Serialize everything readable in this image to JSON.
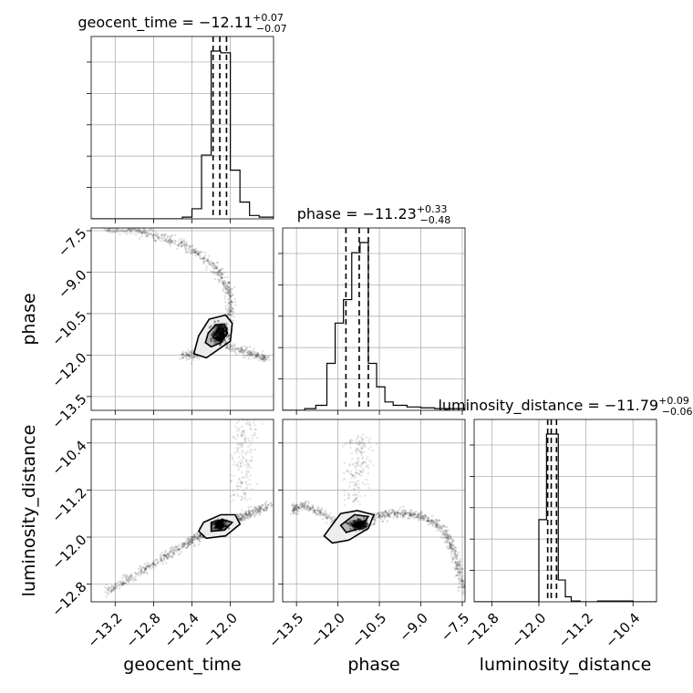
{
  "chart_data": {
    "type": "corner",
    "grid": true,
    "parameters": [
      {
        "name": "geocent_time",
        "median": "−12.11",
        "plus": "+0.07",
        "minus": "−0.07",
        "range": [
          -13.45,
          -11.55
        ],
        "ticks": [
          -13.2,
          -12.8,
          -12.4,
          -12.0
        ],
        "tick_labels": [
          "−13.2",
          "−12.8",
          "−12.4",
          "−12.0"
        ],
        "quantiles": [
          -12.18,
          -12.11,
          -12.04
        ]
      },
      {
        "name": "phase",
        "median": "−11.23",
        "plus": "+0.33",
        "minus": "−0.48",
        "range": [
          -14.0,
          -7.4
        ],
        "ticks": [
          -13.5,
          -12.0,
          -10.5,
          -9.0,
          -7.5
        ],
        "tick_labels": [
          "−13.5",
          "−12.0",
          "−10.5",
          "−9.0",
          "−7.5"
        ],
        "quantiles": [
          -11.71,
          -11.23,
          -10.9
        ]
      },
      {
        "name": "luminosity_distance",
        "median": "−11.79",
        "plus": "+0.09",
        "minus": "−0.06",
        "range": [
          -13.1,
          -10.0
        ],
        "ticks": [
          -12.8,
          -12.0,
          -11.2,
          -10.4
        ],
        "tick_labels": [
          "−12.8",
          "−12.0",
          "−11.2",
          "−10.4"
        ],
        "quantiles": [
          -11.85,
          -11.79,
          -11.7
        ]
      }
    ],
    "histograms": [
      {
        "param": "geocent_time",
        "edges": [
          -12.6,
          -12.5,
          -12.4,
          -12.3,
          -12.2,
          -12.1,
          -12.0,
          -11.9,
          -11.8,
          -11.7,
          -11.55
        ],
        "counts": [
          0,
          0.01,
          0.06,
          0.38,
          1.0,
          0.99,
          0.29,
          0.1,
          0.02,
          0.01
        ]
      },
      {
        "param": "phase",
        "edges": [
          -13.2,
          -12.8,
          -12.4,
          -12.1,
          -11.8,
          -11.5,
          -11.2,
          -10.9,
          -10.6,
          -10.3,
          -10.0,
          -9.5,
          -9.0,
          -8.5,
          -7.4
        ],
        "counts": [
          0.01,
          0.03,
          0.28,
          0.52,
          0.66,
          0.94,
          1.0,
          0.28,
          0.14,
          0.05,
          0.03,
          0.02,
          0.015,
          0.01
        ]
      },
      {
        "param": "luminosity_distance",
        "edges": [
          -12.2,
          -12.0,
          -11.87,
          -11.67,
          -11.55,
          -11.45,
          -11.3,
          -11.0,
          -10.4,
          -10.0
        ],
        "counts": [
          0,
          0.49,
          1.0,
          0.13,
          0.03,
          0.005,
          0,
          0.005,
          0
        ]
      }
    ],
    "pairs": [
      {
        "x": "geocent_time",
        "y": "phase",
        "trend_points": [
          [
            -13.3,
            -7.4
          ],
          [
            -13.1,
            -7.45
          ],
          [
            -12.9,
            -7.55
          ],
          [
            -12.7,
            -7.75
          ],
          [
            -12.5,
            -8.0
          ],
          [
            -12.3,
            -8.4
          ],
          [
            -12.15,
            -8.85
          ],
          [
            -12.05,
            -9.4
          ],
          [
            -12.0,
            -9.9
          ],
          [
            -12.0,
            -10.5
          ],
          [
            -12.03,
            -11.1
          ],
          [
            -12.1,
            -11.5
          ],
          [
            -12.2,
            -11.75
          ],
          [
            -12.3,
            -11.9
          ],
          [
            -12.4,
            -12.0
          ],
          [
            -12.5,
            -12.0
          ]
        ],
        "branch_points": [
          [
            -12.05,
            -11.65
          ],
          [
            -11.9,
            -11.85
          ],
          [
            -11.75,
            -12.0
          ],
          [
            -11.6,
            -12.15
          ]
        ],
        "core": [
          -12.11,
          -11.23
        ],
        "core_spread": [
          0.07,
          0.35
        ],
        "contours": [
          [
            [
              -12.22,
              -10.7
            ],
            [
              -12.05,
              -10.55
            ],
            [
              -11.98,
              -10.85
            ],
            [
              -12.0,
              -11.5
            ],
            [
              -12.25,
              -12.1
            ],
            [
              -12.38,
              -11.95
            ],
            [
              -12.33,
              -11.3
            ]
          ],
          [
            [
              -12.15,
              -10.9
            ],
            [
              -12.06,
              -10.9
            ],
            [
              -12.03,
              -11.2
            ],
            [
              -12.1,
              -11.55
            ],
            [
              -12.2,
              -11.7
            ],
            [
              -12.26,
              -11.55
            ],
            [
              -12.23,
              -11.2
            ]
          ],
          [
            [
              -12.13,
              -11.05
            ],
            [
              -12.07,
              -11.05
            ],
            [
              -12.07,
              -11.35
            ],
            [
              -12.14,
              -11.45
            ],
            [
              -12.18,
              -11.35
            ]
          ]
        ]
      },
      {
        "x": "geocent_time",
        "y": "luminosity_distance",
        "trend_points": [
          [
            -13.3,
            -12.95
          ],
          [
            -13.0,
            -12.65
          ],
          [
            -12.7,
            -12.35
          ],
          [
            -12.45,
            -12.1
          ],
          [
            -12.3,
            -11.95
          ],
          [
            -12.2,
            -11.85
          ],
          [
            -12.1,
            -11.8
          ],
          [
            -12.0,
            -11.75
          ],
          [
            -11.9,
            -11.67
          ],
          [
            -11.75,
            -11.56
          ],
          [
            -11.6,
            -11.45
          ]
        ],
        "vertical_points": [
          [
            -11.9,
            -11.4
          ],
          [
            -11.88,
            -11.1
          ],
          [
            -11.86,
            -10.8
          ],
          [
            -11.85,
            -10.5
          ],
          [
            -11.83,
            -10.25
          ],
          [
            -11.82,
            -10.05
          ]
        ],
        "core": [
          -12.11,
          -11.79
        ],
        "core_spread": [
          0.06,
          0.07
        ],
        "contours": [
          [
            [
              -12.28,
              -11.75
            ],
            [
              -12.1,
              -11.62
            ],
            [
              -11.95,
              -11.62
            ],
            [
              -11.9,
              -11.78
            ],
            [
              -12.05,
              -11.98
            ],
            [
              -12.25,
              -12.02
            ],
            [
              -12.33,
              -11.9
            ]
          ],
          [
            [
              -12.2,
              -11.75
            ],
            [
              -12.08,
              -11.7
            ],
            [
              -11.98,
              -11.75
            ],
            [
              -12.06,
              -11.88
            ],
            [
              -12.2,
              -11.9
            ]
          ]
        ]
      },
      {
        "x": "phase",
        "y": "luminosity_distance",
        "trend_points": [
          [
            -13.7,
            -11.55
          ],
          [
            -13.2,
            -11.45
          ],
          [
            -12.6,
            -11.6
          ],
          [
            -12.0,
            -11.75
          ],
          [
            -11.5,
            -11.8
          ],
          [
            -11.0,
            -11.72
          ],
          [
            -10.5,
            -11.65
          ],
          [
            -10.0,
            -11.6
          ],
          [
            -9.5,
            -11.6
          ],
          [
            -9.0,
            -11.65
          ],
          [
            -8.5,
            -11.75
          ],
          [
            -8.1,
            -11.95
          ],
          [
            -7.8,
            -12.25
          ],
          [
            -7.6,
            -12.55
          ],
          [
            -7.45,
            -12.9
          ]
        ],
        "vertical_points": [
          [
            -11.45,
            -11.4
          ],
          [
            -11.3,
            -11.0
          ],
          [
            -11.2,
            -10.6
          ],
          [
            -11.15,
            -10.3
          ]
        ],
        "core": [
          -11.23,
          -11.79
        ],
        "core_spread": [
          0.3,
          0.07
        ],
        "contours": [
          [
            [
              -12.3,
              -11.85
            ],
            [
              -11.9,
              -11.6
            ],
            [
              -11.3,
              -11.55
            ],
            [
              -10.7,
              -11.62
            ],
            [
              -10.9,
              -11.85
            ],
            [
              -11.6,
              -12.05
            ],
            [
              -12.2,
              -12.1
            ],
            [
              -12.5,
              -11.98
            ]
          ],
          [
            [
              -11.9,
              -11.8
            ],
            [
              -11.4,
              -11.62
            ],
            [
              -10.9,
              -11.65
            ],
            [
              -11.2,
              -11.85
            ],
            [
              -11.7,
              -11.92
            ]
          ]
        ]
      }
    ]
  }
}
